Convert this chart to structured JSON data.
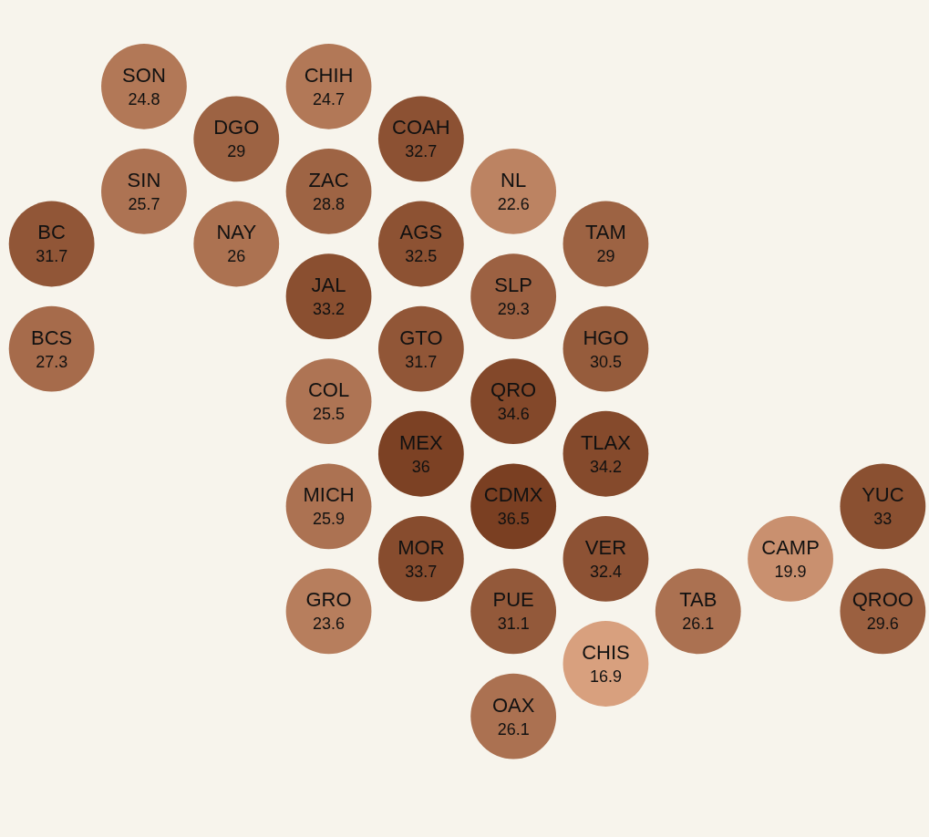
{
  "chart_data": {
    "type": "other",
    "categories": [
      "SON",
      "CHIH",
      "DGO",
      "COAH",
      "SIN",
      "ZAC",
      "NL",
      "BC",
      "NAY",
      "AGS",
      "TAM",
      "JAL",
      "SLP",
      "BCS",
      "GTO",
      "HGO",
      "COL",
      "QRO",
      "MEX",
      "TLAX",
      "MICH",
      "CDMX",
      "YUC",
      "MOR",
      "VER",
      "CAMP",
      "GRO",
      "PUE",
      "TAB",
      "QROO",
      "CHIS",
      "OAX"
    ],
    "values": [
      24.8,
      24.7,
      29,
      32.7,
      25.7,
      28.8,
      22.6,
      31.7,
      26,
      32.5,
      29,
      33.2,
      29.3,
      27.3,
      31.7,
      30.5,
      25.5,
      34.6,
      36,
      34.2,
      25.9,
      36.5,
      33,
      33.7,
      32.4,
      19.9,
      23.6,
      31.1,
      26.1,
      29.6,
      16.9,
      26.1
    ],
    "data_labels": true
  }
}
